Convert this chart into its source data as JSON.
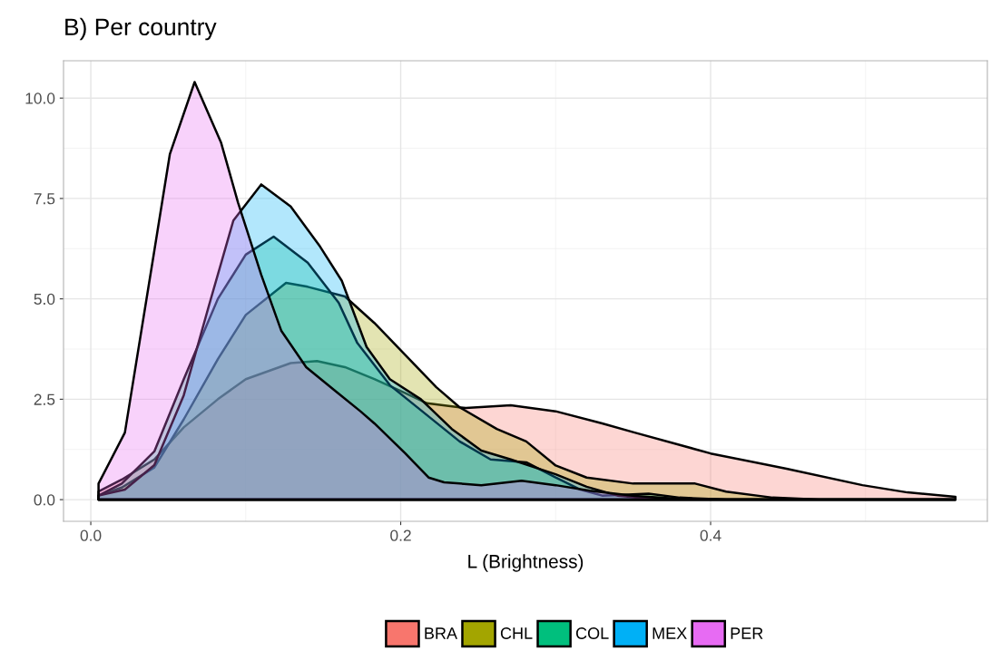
{
  "chart_data": {
    "type": "area",
    "title": "B) Per country",
    "xlabel": "L (Brightness)",
    "xlim": [
      -0.0176,
      0.5786
    ],
    "ylim": [
      -0.54,
      10.93
    ],
    "xticks": [
      {
        "value": 0.0,
        "label": "0.0"
      },
      {
        "value": 0.2,
        "label": "0.2"
      },
      {
        "value": 0.4,
        "label": "0.4"
      }
    ],
    "yticks": [
      {
        "value": 0.0,
        "label": "0.0"
      },
      2.5,
      {
        "value": 5.0,
        "label": "5.0"
      },
      7.5,
      {
        "value": 10.0,
        "label": "10.0"
      }
    ],
    "grid": true,
    "legend": "bottom",
    "series": [
      {
        "name": "BRA",
        "color": "#f8766d",
        "x": [
          0.005,
          0.02,
          0.041,
          0.06,
          0.082,
          0.1,
          0.129,
          0.146,
          0.164,
          0.183,
          0.203,
          0.217,
          0.242,
          0.271,
          0.3,
          0.33,
          0.351,
          0.4,
          0.449,
          0.498,
          0.527,
          0.558
        ],
        "values": [
          0.2,
          0.5,
          1.0,
          1.8,
          2.5,
          3.0,
          3.4,
          3.45,
          3.3,
          3.0,
          2.65,
          2.4,
          2.28,
          2.35,
          2.2,
          1.9,
          1.67,
          1.15,
          0.77,
          0.36,
          0.18,
          0.07
        ]
      },
      {
        "name": "CHL",
        "color": "#a3a500",
        "x": [
          0.005,
          0.02,
          0.041,
          0.06,
          0.082,
          0.1,
          0.126,
          0.14,
          0.164,
          0.183,
          0.203,
          0.223,
          0.238,
          0.262,
          0.281,
          0.3,
          0.32,
          0.35,
          0.39,
          0.41,
          0.44,
          0.47,
          0.558
        ],
        "values": [
          0.1,
          0.3,
          0.8,
          2.0,
          3.5,
          4.6,
          5.4,
          5.3,
          5.06,
          4.4,
          3.6,
          2.8,
          2.3,
          1.76,
          1.45,
          0.85,
          0.55,
          0.4,
          0.4,
          0.2,
          0.05,
          0.0,
          0.0
        ]
      },
      {
        "name": "COL",
        "color": "#00bf7d",
        "x": [
          0.005,
          0.02,
          0.041,
          0.06,
          0.082,
          0.1,
          0.118,
          0.14,
          0.16,
          0.172,
          0.193,
          0.238,
          0.258,
          0.281,
          0.3,
          0.316,
          0.33,
          0.36,
          0.38,
          0.41,
          0.558
        ],
        "values": [
          0.1,
          0.4,
          1.2,
          3.0,
          5.0,
          6.1,
          6.55,
          5.9,
          4.9,
          3.9,
          2.85,
          1.45,
          1.0,
          0.93,
          0.55,
          0.25,
          0.1,
          0.15,
          0.05,
          0.0,
          0.0
        ]
      },
      {
        "name": "MEX",
        "color": "#00b0f6",
        "x": [
          0.005,
          0.022,
          0.041,
          0.06,
          0.076,
          0.092,
          0.11,
          0.129,
          0.148,
          0.162,
          0.178,
          0.193,
          0.213,
          0.233,
          0.252,
          0.271,
          0.3,
          0.32,
          0.34,
          0.36,
          0.38,
          0.558
        ],
        "values": [
          0.1,
          0.25,
          0.86,
          2.6,
          4.8,
          6.95,
          7.85,
          7.3,
          6.3,
          5.45,
          3.8,
          3.0,
          2.5,
          1.76,
          1.22,
          1.0,
          0.63,
          0.32,
          0.1,
          0.03,
          0.0,
          0.0
        ]
      },
      {
        "name": "PER",
        "color": "#e76bf3",
        "x": [
          0.005,
          0.022,
          0.041,
          0.051,
          0.067,
          0.084,
          0.095,
          0.11,
          0.123,
          0.139,
          0.158,
          0.174,
          0.183,
          0.203,
          0.218,
          0.228,
          0.252,
          0.278,
          0.3,
          0.322,
          0.351,
          0.38,
          0.41,
          0.558
        ],
        "values": [
          0.4,
          1.67,
          6.2,
          8.6,
          10.4,
          8.9,
          7.4,
          5.6,
          4.2,
          3.3,
          2.7,
          2.2,
          1.9,
          1.15,
          0.55,
          0.43,
          0.36,
          0.47,
          0.36,
          0.22,
          0.09,
          0.02,
          0.0,
          0.0
        ]
      }
    ]
  }
}
